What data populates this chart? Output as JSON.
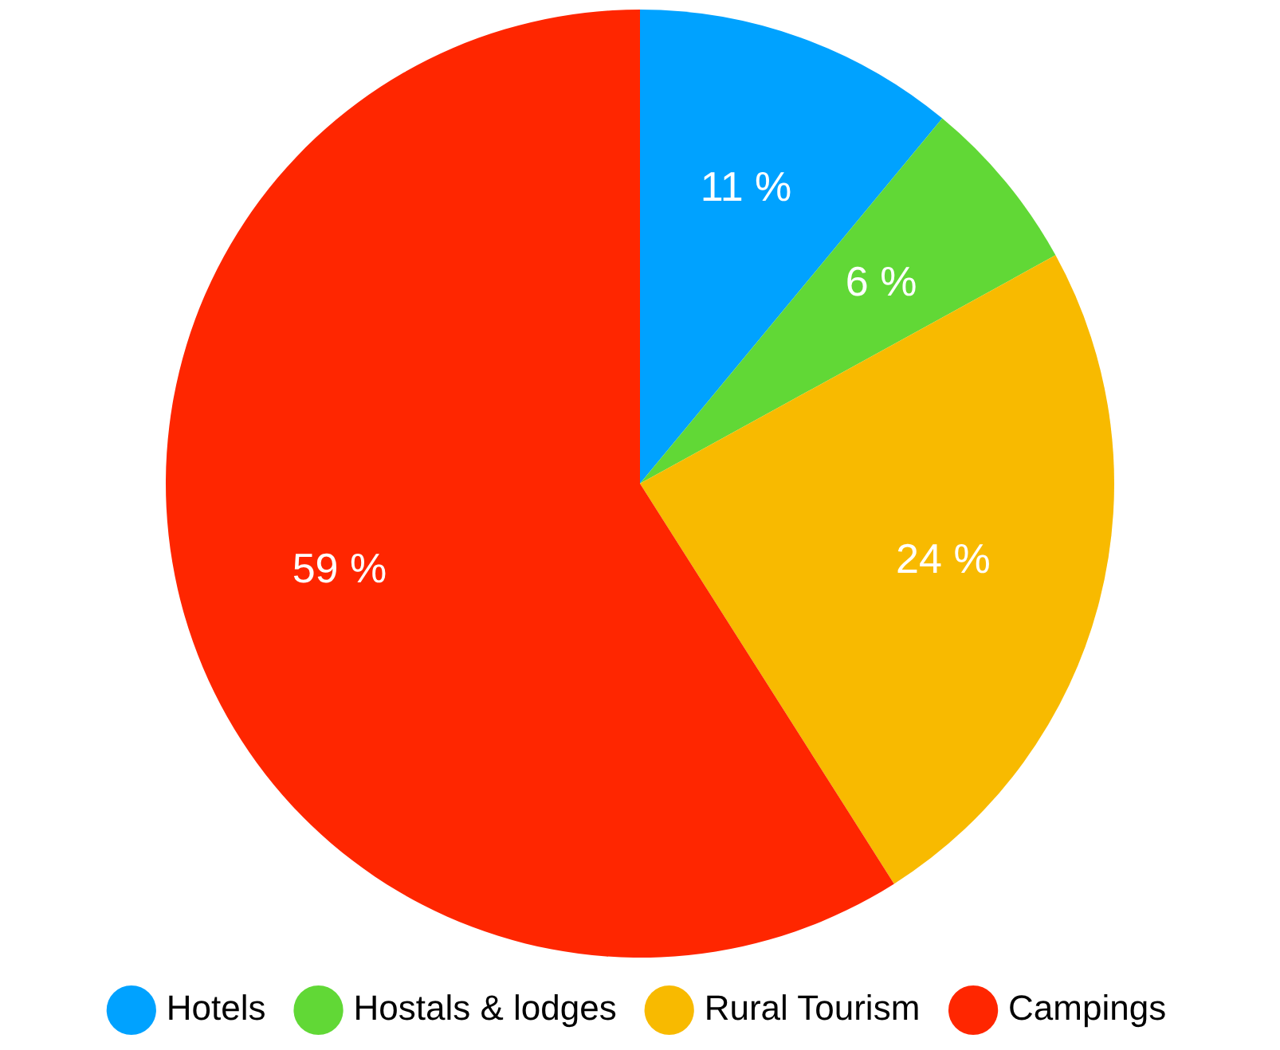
{
  "chart_data": {
    "type": "pie",
    "categories": [
      "Hotels",
      "Hostals & lodges",
      "Rural Tourism",
      "Campings"
    ],
    "values": [
      11,
      6,
      24,
      59
    ],
    "colors": [
      "#00a2ff",
      "#61d836",
      "#f8ba00",
      "#ff2600"
    ],
    "value_labels": [
      "11 %",
      "6 %",
      "24 %",
      "59 %"
    ],
    "legend": "bottom"
  }
}
